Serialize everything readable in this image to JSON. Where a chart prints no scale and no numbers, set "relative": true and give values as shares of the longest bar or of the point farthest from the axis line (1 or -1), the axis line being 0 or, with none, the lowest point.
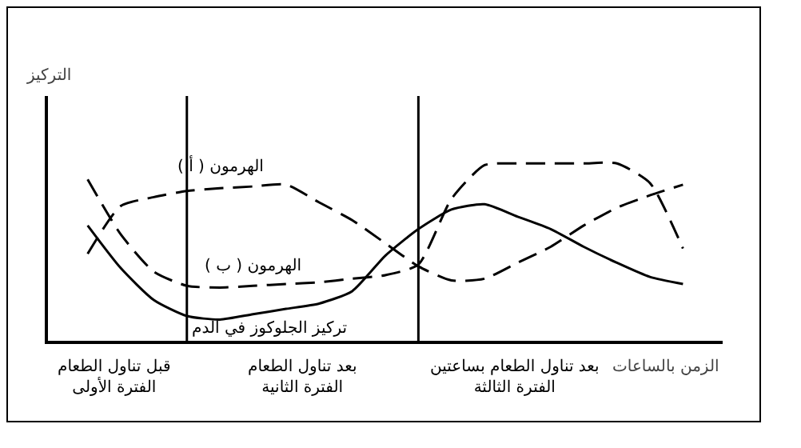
{
  "chart_data": {
    "type": "line",
    "relative": true,
    "ylabel": "التركيز",
    "xlabel": "الزمن بالساعات",
    "legend": false,
    "grid": false,
    "marker": "none",
    "categories": [
      null,
      null,
      null,
      null,
      null,
      null,
      null,
      null,
      null,
      null,
      null,
      null,
      null,
      null,
      null,
      null,
      null,
      null,
      null,
      null,
      null
    ],
    "series": [
      {
        "name": "الهرمون ( أ )",
        "color": "#000000",
        "line_style": "dashed",
        "values": [
          null,
          0.49,
          0.76,
          0.81,
          0.845,
          0.86,
          0.87,
          0.88,
          0.78,
          0.68,
          0.55,
          0.42,
          0.34,
          0.35,
          0.44,
          0.53,
          0.65,
          0.75,
          0.82,
          0.88,
          null
        ]
      },
      {
        "name": "الهرمون ( ب )",
        "color": "#000000",
        "line_style": "dashed",
        "values": [
          null,
          0.91,
          0.6,
          0.39,
          0.31,
          0.3,
          0.31,
          0.32,
          0.33,
          0.35,
          0.37,
          0.43,
          0.8,
          0.99,
          1,
          1,
          1,
          1,
          0.89,
          0.52,
          null
        ]
      },
      {
        "name": "تركيز الجلوكوز في الدم",
        "color": "#000000",
        "line_style": "solid",
        "values": [
          null,
          0.65,
          0.41,
          0.23,
          0.14,
          0.12,
          0.15,
          0.18,
          0.21,
          0.28,
          0.48,
          0.63,
          0.74,
          0.77,
          0.7,
          0.63,
          0.53,
          0.44,
          0.36,
          0.32,
          null
        ]
      }
    ],
    "annotations": [
      "قبل تناول الطعام\nالفترة الأولى",
      "بعد تناول الطعام\nالفترة الثانية",
      "بعد تناول الطعام بساعتين\nالفترة الثالثة"
    ]
  }
}
